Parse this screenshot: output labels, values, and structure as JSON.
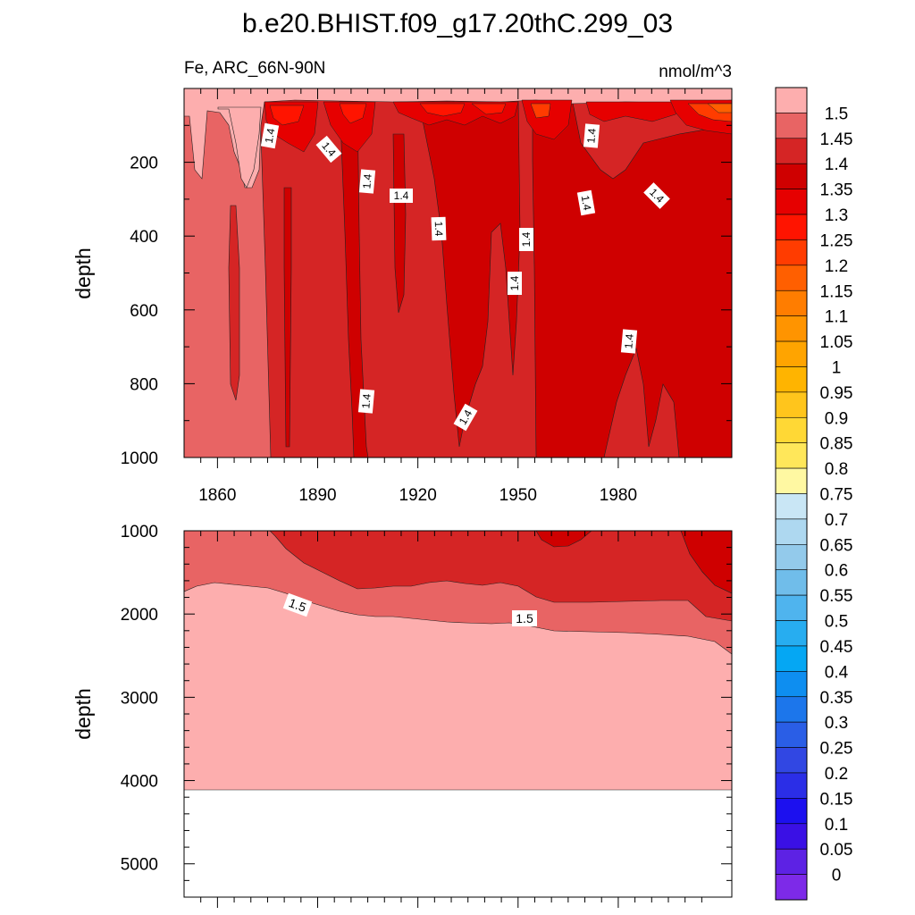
{
  "chart_data": {
    "type": "heatmap",
    "title": "b.e20.BHIST.f09_g17.20thC.299_03",
    "subtitle_left": "Fe, ARC_66N-90N",
    "subtitle_right": "nmol/m^3",
    "ylabel": "depth",
    "xlim": [
      1850,
      2014
    ],
    "top_panel": {
      "ylim": [
        0,
        1000
      ],
      "y_ticks": [
        "200",
        "400",
        "600",
        "800",
        "1000"
      ],
      "x_ticks": [
        "1860",
        "1890",
        "1920",
        "1950",
        "1980"
      ],
      "contour_labels": [
        "1.4",
        "1.4",
        "1.4",
        "1.4",
        "1.4",
        "1.4",
        "1.4",
        "1.4",
        "1.4",
        "1.4",
        "1.4",
        "1.4",
        "1.4"
      ]
    },
    "bottom_panel": {
      "ylim": [
        1000,
        5400
      ],
      "y_ticks": [
        "1000",
        "2000",
        "3000",
        "4000",
        "5000"
      ],
      "data_bottom_depth": 4120,
      "contour_labels": [
        "1.5",
        "1.5"
      ]
    },
    "colorbar": {
      "labels": [
        "1.5",
        "1.45",
        "1.4",
        "1.35",
        "1.3",
        "1.25",
        "1.2",
        "1.15",
        "1.1",
        "1.05",
        "1",
        "0.95",
        "0.9",
        "0.85",
        "0.8",
        "0.75",
        "0.7",
        "0.65",
        "0.6",
        "0.55",
        "0.5",
        "0.45",
        "0.4",
        "0.35",
        "0.3",
        "0.25",
        "0.2",
        "0.15",
        "0.1",
        "0.05",
        "0"
      ],
      "colors": [
        "#fdaeae",
        "#e86464",
        "#d52525",
        "#cf0000",
        "#e60000",
        "#ff1400",
        "#ff3c00",
        "#ff5f00",
        "#ff7d00",
        "#ff9400",
        "#ffa400",
        "#ffb400",
        "#ffc51c",
        "#ffd835",
        "#ffe75a",
        "#fff8a2",
        "#c9e6f5",
        "#aed8f0",
        "#93caeb",
        "#70bdea",
        "#4fb4ee",
        "#27adf0",
        "#05a7f3",
        "#0e8ef0",
        "#1c76eb",
        "#2a5ee6",
        "#3147e3",
        "#2b2ee7",
        "#1c10ef",
        "#3a10e5",
        "#5d22e4",
        "#7d2ae8"
      ]
    },
    "fill_levels_used": {
      "1.5_plus": "#fdaeae",
      "1.45_1.5": "#e86464",
      "1.4_1.45": "#d52525",
      "1.35_1.4": "#cf0000",
      "1.3_1.35": "#e60000",
      "1.25_1.3": "#ff1400",
      "1.2_1.25": "#ff3c00",
      "1.15_1.2": "#ff5f00"
    }
  }
}
